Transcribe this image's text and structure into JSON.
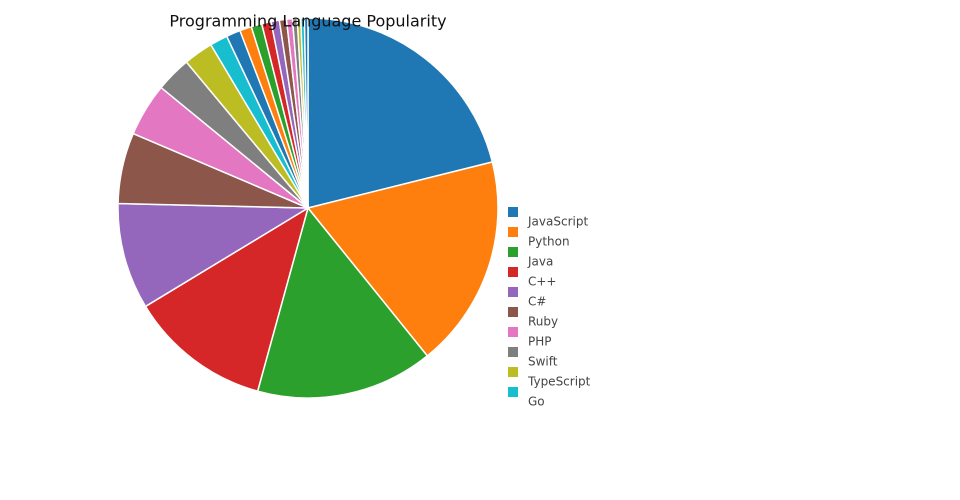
{
  "chart_data": {
    "type": "pie",
    "title": "Programming Language Popularity",
    "categories": [
      "JavaScript",
      "Python",
      "Java",
      "C++",
      "C#",
      "Ruby",
      "PHP",
      "Swift",
      "TypeScript",
      "Go",
      null,
      null,
      null,
      null,
      null,
      null,
      null,
      null,
      null,
      null,
      null
    ],
    "values": [
      21,
      18,
      15,
      12,
      9,
      6,
      4.5,
      3,
      2.5,
      1.5,
      1.2,
      1,
      0.9,
      0.8,
      0.7,
      0.6,
      0.5,
      0.4,
      0.3,
      0.3,
      0.3
    ],
    "colors": [
      "#1f77b4",
      "#ff7f0e",
      "#2ca02c",
      "#d62728",
      "#9467bd",
      "#8c564b",
      "#e377c2",
      "#7f7f7f",
      "#bcbd22",
      "#17becf"
    ],
    "legend": "right"
  }
}
